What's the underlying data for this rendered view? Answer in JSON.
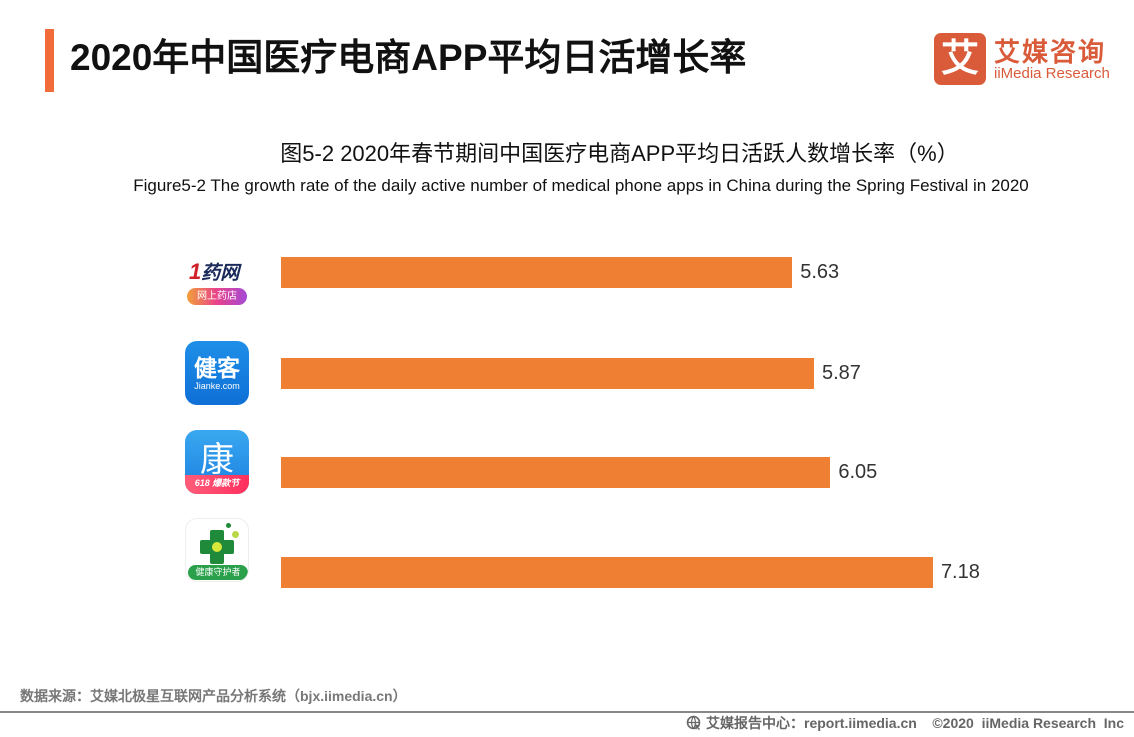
{
  "header": {
    "title": "2020年中国医疗电商APP平均日活增长率",
    "accent_color": "#f26b3a"
  },
  "logo": {
    "glyph": "艾",
    "name_cn": "艾媒咨询",
    "name_en": "iiMedia Research",
    "color": "#d95b3a"
  },
  "chart_data": {
    "type": "bar",
    "orientation": "horizontal",
    "title": "图5-2 2020年春节期间中国医疗电商APP平均日活跃人数增长率（%）",
    "subtitle": "Figure5-2 The growth rate of the daily active number of medical phone apps in China during the Spring Festival in 2020",
    "categories": [
      "1药网",
      "健客",
      "康爱多",
      "健康守护者"
    ],
    "values": [
      5.63,
      5.87,
      6.05,
      7.18
    ],
    "value_labels": [
      "5.63",
      "5.87",
      "6.05",
      "7.18"
    ],
    "bar_color": "#ee7f33",
    "xlabel": "",
    "ylabel": "",
    "grid": false,
    "legend": false,
    "xlim": [
      0,
      7.5
    ]
  },
  "icons": [
    {
      "name": "yiyao-app-icon",
      "text": "1药网",
      "accent": "1",
      "rest": "药网",
      "badge": "网上药店"
    },
    {
      "name": "jianke-app-icon",
      "text": "健客",
      "sub": "Jianke.com"
    },
    {
      "name": "kangaiduo-app-icon",
      "text": "康",
      "badge": "618 爆款节"
    },
    {
      "name": "health-guardian-app-icon",
      "badge": "健康守护者"
    }
  ],
  "source": "数据来源：艾媒北极星互联网产品分析系统（bjx.iimedia.cn）",
  "footer": {
    "icon": "globe-icon",
    "text": "艾媒报告中心：report.iimedia.cn    ©2020  iiMedia Research  Inc"
  }
}
